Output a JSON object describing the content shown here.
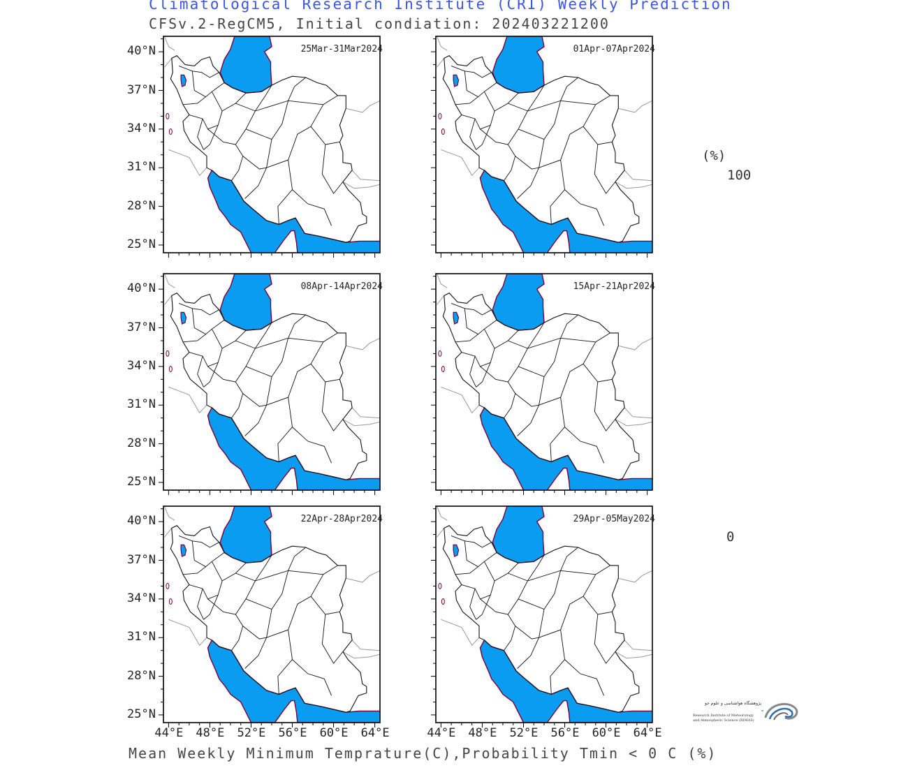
{
  "header": {
    "title": "Climatological Research Institute (CRI) Weekly Prediction",
    "subtitle": "CFSv.2-RegCM5, Initial condiation: 202403221200"
  },
  "footer": {
    "caption": "Mean Weekly Minimum Temprature(C),Probability Tmin < 0 C (%)"
  },
  "map": {
    "lat_labels": [
      "40°N",
      "37°N",
      "34°N",
      "31°N",
      "28°N",
      "25°N"
    ],
    "lon_labels": [
      "44°E",
      "48°E",
      "52°E",
      "56°E",
      "60°E",
      "64°E"
    ],
    "water_color": "#0a9cf0",
    "coast_color": "#7a0030"
  },
  "panels": [
    {
      "date_range": "25Mar-31Mar2024"
    },
    {
      "date_range": "01Apr-07Apr2024"
    },
    {
      "date_range": "08Apr-14Apr2024"
    },
    {
      "date_range": "15Apr-21Apr2024"
    },
    {
      "date_range": "22Apr-28Apr2024"
    },
    {
      "date_range": "29Apr-05May2024"
    }
  ],
  "colorbar": {
    "unit": "(%)",
    "max_label": "100",
    "min_label": "0"
  },
  "logo": {
    "name_fa": "پژوهشگاه هواشناسی و علوم جو",
    "name_en_line1": "Research Institute of Meteorology",
    "name_en_line2": "and Atmospheric Science (RIMAS)"
  }
}
